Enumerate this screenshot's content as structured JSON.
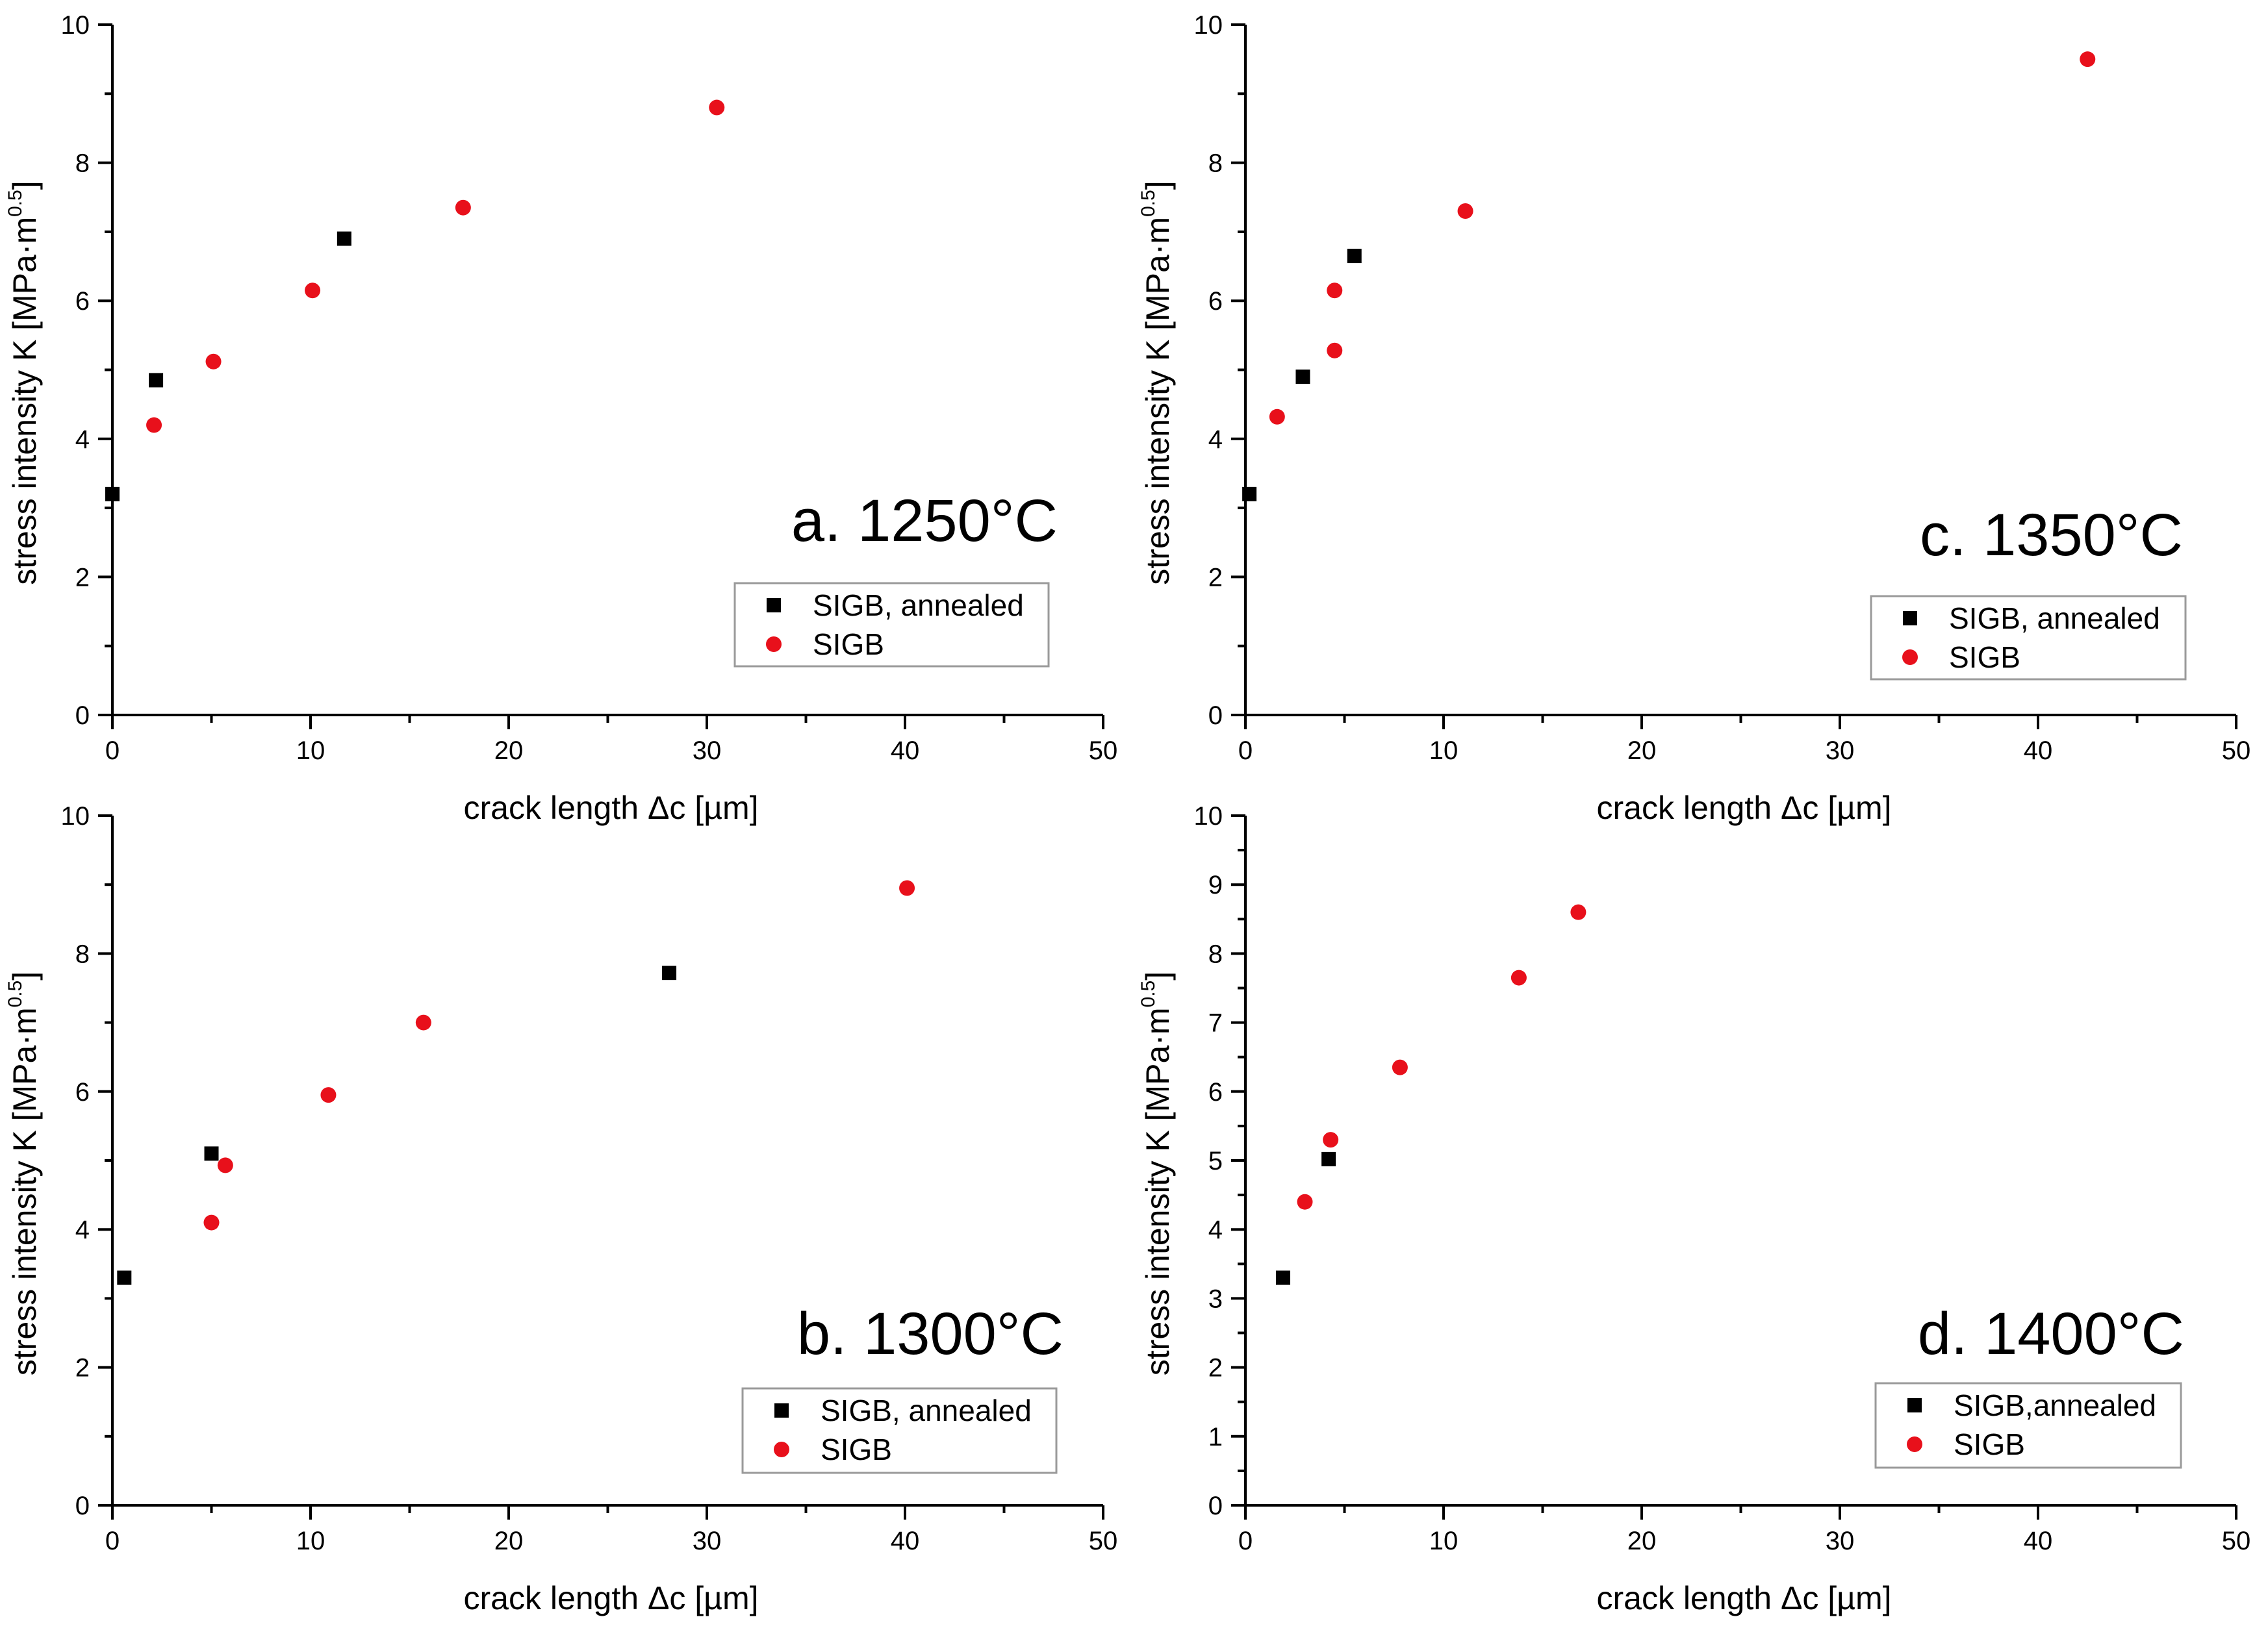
{
  "colors": {
    "annealed": "#000000",
    "sigb": "#e8101b",
    "legend_border": "#9a9a9a"
  },
  "icons": {
    "annealed_marker": "square",
    "sigb_marker": "circle"
  },
  "chart_data": [
    {
      "type": "scatter",
      "title": "a. 1250°C",
      "xlabel": "crack length Δc [µm]",
      "ylabel_main": "stress intensity K [MPa·m",
      "ylabel_sup": "0.5",
      "ylabel_end": "]",
      "xlim": [
        0,
        50
      ],
      "ylim": [
        0,
        10
      ],
      "xticks": [
        "0",
        "10",
        "20",
        "30",
        "40",
        "50"
      ],
      "yticks": [
        "0",
        "2",
        "4",
        "6",
        "8",
        "10"
      ],
      "legend_position": "lower-right",
      "series": [
        {
          "name": "SIGB, annealed",
          "marker": "square",
          "x": [
            0,
            2.2,
            11.7
          ],
          "y": [
            3.2,
            4.85,
            6.9
          ]
        },
        {
          "name": "SIGB",
          "marker": "circle",
          "x": [
            2.1,
            5.1,
            10.1,
            17.7,
            30.5
          ],
          "y": [
            4.2,
            5.12,
            6.15,
            7.35,
            8.8
          ]
        }
      ]
    },
    {
      "type": "scatter",
      "title": "c. 1350°C",
      "xlabel": "crack length Δc [µm]",
      "ylabel_main": "stress intensity K [MPa·m",
      "ylabel_sup": "0.5",
      "ylabel_end": "]",
      "xlim": [
        0,
        50
      ],
      "ylim": [
        0,
        10
      ],
      "xticks": [
        "0",
        "10",
        "20",
        "30",
        "40",
        "50"
      ],
      "yticks": [
        "0",
        "2",
        "4",
        "6",
        "8",
        "10"
      ],
      "legend_position": "lower-right",
      "series": [
        {
          "name": "SIGB, annealed",
          "marker": "square",
          "x": [
            0.2,
            2.9,
            5.5
          ],
          "y": [
            3.2,
            4.9,
            6.65
          ]
        },
        {
          "name": "SIGB",
          "marker": "circle",
          "x": [
            1.6,
            4.5,
            4.5,
            11.1,
            42.5
          ],
          "y": [
            4.32,
            5.28,
            6.15,
            7.3,
            9.5
          ]
        }
      ]
    },
    {
      "type": "scatter",
      "title": "b. 1300°C",
      "xlabel": "crack length Δc [µm]",
      "ylabel_main": "stress intensity K [MPa·m",
      "ylabel_sup": "0.5",
      "ylabel_end": "]",
      "xlim": [
        0,
        50
      ],
      "ylim": [
        0,
        10
      ],
      "xticks": [
        "0",
        "10",
        "20",
        "30",
        "40",
        "50"
      ],
      "yticks": [
        "0",
        "2",
        "4",
        "6",
        "8",
        "10"
      ],
      "legend_position": "lower-right",
      "series": [
        {
          "name": "SIGB, annealed",
          "marker": "square",
          "x": [
            0.6,
            5.0,
            28.1
          ],
          "y": [
            3.3,
            5.1,
            7.72
          ]
        },
        {
          "name": "SIGB",
          "marker": "circle",
          "x": [
            5.0,
            5.7,
            10.9,
            15.7,
            40.1
          ],
          "y": [
            4.1,
            4.93,
            5.95,
            7.0,
            8.95
          ]
        }
      ]
    },
    {
      "type": "scatter",
      "title": "d. 1400°C",
      "xlabel": "crack length Δc [µm]",
      "ylabel_main": "stress intensity K [MPa·m",
      "ylabel_sup": "0.5",
      "ylabel_end": "]",
      "xlim": [
        0,
        50
      ],
      "ylim": [
        0,
        10
      ],
      "xticks": [
        "0",
        "10",
        "20",
        "30",
        "40",
        "50"
      ],
      "yticks": [
        "0",
        "1",
        "2",
        "3",
        "4",
        "5",
        "6",
        "7",
        "8",
        "9",
        "10"
      ],
      "legend_position": "lower-right",
      "series": [
        {
          "name": "SIGB,annealed",
          "marker": "square",
          "x": [
            1.9,
            4.2
          ],
          "y": [
            3.3,
            5.02
          ]
        },
        {
          "name": "SIGB",
          "marker": "circle",
          "x": [
            3.0,
            4.3,
            7.8,
            13.8,
            16.8
          ],
          "y": [
            4.4,
            5.3,
            6.35,
            7.65,
            8.6
          ]
        }
      ]
    }
  ]
}
